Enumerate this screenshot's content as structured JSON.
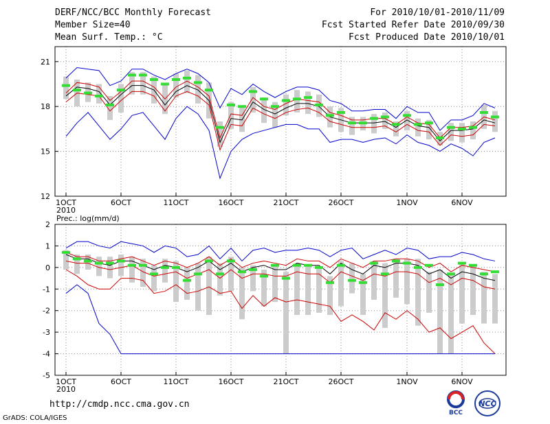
{
  "header": {
    "left": [
      "DERF/NCC/BCC Monthly Forecast",
      "Member Size=40",
      "Mean Surf. Temp.: °C"
    ],
    "right": [
      "For 2010/10/01-2010/11/09",
      "Fcst Started Refer Date 2010/09/30",
      "Fcst Produced Date 2010/10/01"
    ]
  },
  "footer": {
    "url": "http://cmdp.ncc.cma.gov.cn",
    "credit": "GrADS: COLA/IGES"
  },
  "logos": {
    "bcc": "BCC",
    "ncc": "NCC"
  },
  "colors": {
    "envelope": "#0000cc",
    "mean": "#000000",
    "spread": "#cc0000",
    "bar": "#cccccc",
    "marker": "#33dd33"
  },
  "chart_data": [
    {
      "type": "line",
      "title": "Mean Surf. Temp.: °C",
      "xlabel": "",
      "ylabel": "",
      "x_tick_labels": [
        "1OCT",
        "6OCT",
        "11OCT",
        "16OCT",
        "21OCT",
        "26OCT",
        "1NOV",
        "6NOV"
      ],
      "x_tick_days": [
        1,
        6,
        11,
        16,
        21,
        26,
        32,
        37
      ],
      "year_label": "2010",
      "ylim": [
        12,
        22
      ],
      "y_ticks": [
        12,
        15,
        18,
        21
      ],
      "x": [
        1,
        2,
        3,
        4,
        5,
        6,
        7,
        8,
        9,
        10,
        11,
        12,
        13,
        14,
        15,
        16,
        17,
        18,
        19,
        20,
        21,
        22,
        23,
        24,
        25,
        26,
        27,
        28,
        29,
        30,
        31,
        32,
        33,
        34,
        35,
        36,
        37,
        38,
        39,
        40
      ],
      "series": [
        {
          "name": "max",
          "values": [
            19.9,
            20.6,
            20.5,
            20.4,
            19.4,
            19.7,
            20.5,
            20.5,
            20.1,
            19.8,
            20.2,
            20.5,
            20.2,
            19.6,
            17.9,
            19.2,
            18.8,
            19.5,
            19.0,
            18.6,
            19.0,
            19.3,
            19.3,
            19.1,
            18.4,
            18.2,
            17.7,
            17.7,
            17.8,
            17.8,
            17.2,
            18.0,
            17.6,
            17.6,
            16.4,
            17.1,
            17.1,
            17.4,
            18.2,
            17.9
          ]
        },
        {
          "name": "upper",
          "values": [
            18.9,
            19.6,
            19.5,
            19.3,
            18.4,
            19.0,
            19.7,
            19.7,
            19.3,
            18.5,
            19.3,
            19.7,
            19.3,
            18.7,
            15.9,
            17.5,
            17.4,
            18.6,
            18.0,
            17.8,
            18.2,
            18.5,
            18.4,
            18.3,
            17.6,
            17.4,
            17.1,
            17.1,
            17.2,
            17.2,
            16.8,
            17.3,
            16.9,
            16.8,
            15.9,
            16.6,
            16.6,
            16.7,
            17.3,
            17.1
          ]
        },
        {
          "name": "mean",
          "values": [
            18.7,
            19.3,
            19.2,
            19.0,
            18.1,
            18.8,
            19.4,
            19.4,
            19.1,
            18.1,
            19.0,
            19.4,
            19.1,
            18.4,
            15.6,
            17.2,
            17.1,
            18.3,
            17.8,
            17.5,
            17.9,
            18.2,
            18.2,
            18.0,
            17.3,
            17.1,
            16.9,
            16.9,
            16.9,
            17.0,
            16.6,
            17.1,
            16.7,
            16.6,
            15.7,
            16.4,
            16.4,
            16.5,
            17.1,
            16.9
          ]
        },
        {
          "name": "lower",
          "values": [
            18.3,
            18.9,
            18.8,
            18.7,
            17.7,
            18.4,
            19.0,
            19.0,
            18.7,
            17.7,
            18.7,
            19.0,
            18.7,
            18.1,
            15.1,
            16.8,
            16.7,
            17.9,
            17.5,
            17.2,
            17.6,
            17.8,
            17.9,
            17.6,
            17.0,
            16.8,
            16.6,
            16.6,
            16.6,
            16.7,
            16.3,
            16.8,
            16.4,
            16.3,
            15.4,
            16.1,
            16.0,
            16.1,
            16.8,
            16.7
          ]
        },
        {
          "name": "min",
          "values": [
            16.0,
            16.9,
            17.6,
            16.7,
            15.8,
            16.5,
            17.4,
            17.6,
            16.7,
            15.8,
            17.2,
            18.0,
            17.5,
            16.4,
            13.2,
            15.0,
            15.8,
            16.2,
            16.4,
            16.6,
            16.8,
            16.8,
            16.5,
            16.5,
            15.6,
            15.8,
            15.8,
            15.6,
            15.8,
            15.9,
            15.5,
            16.1,
            15.6,
            15.4,
            15.0,
            15.5,
            15.2,
            14.7,
            15.6,
            15.9
          ]
        },
        {
          "name": "obs",
          "values": [
            19.4,
            19.1,
            18.9,
            18.7,
            18.1,
            19.1,
            20.1,
            20.1,
            19.8,
            19.5,
            19.8,
            19.9,
            19.6,
            19.1,
            16.6,
            18.1,
            18.0,
            19.0,
            18.5,
            18.0,
            18.4,
            18.5,
            18.6,
            18.1,
            17.4,
            17.6,
            16.9,
            16.9,
            17.2,
            17.3,
            16.8,
            17.4,
            16.8,
            16.9,
            15.9,
            16.6,
            16.5,
            16.6,
            17.6,
            17.3
          ]
        }
      ],
      "bars": [
        [
          18.5,
          20.0
        ],
        [
          18.0,
          19.8
        ],
        [
          18.3,
          19.6
        ],
        [
          18.2,
          19.5
        ],
        [
          17.1,
          18.7
        ],
        [
          17.6,
          19.5
        ],
        [
          18.8,
          20.3
        ],
        [
          18.8,
          20.3
        ],
        [
          18.2,
          20.0
        ],
        [
          17.5,
          19.5
        ],
        [
          18.6,
          20.2
        ],
        [
          18.9,
          20.4
        ],
        [
          18.2,
          20.1
        ],
        [
          17.2,
          19.6
        ],
        [
          15.3,
          17.0
        ],
        [
          16.5,
          18.3
        ],
        [
          16.3,
          18.0
        ],
        [
          17.6,
          19.3
        ],
        [
          16.9,
          18.6
        ],
        [
          16.6,
          18.3
        ],
        [
          17.4,
          18.8
        ],
        [
          17.6,
          19.1
        ],
        [
          17.5,
          19.0
        ],
        [
          17.3,
          18.8
        ],
        [
          16.6,
          18.0
        ],
        [
          16.3,
          17.9
        ],
        [
          16.1,
          17.3
        ],
        [
          16.4,
          17.3
        ],
        [
          16.2,
          17.5
        ],
        [
          16.5,
          17.6
        ],
        [
          16.0,
          17.0
        ],
        [
          16.4,
          17.7
        ],
        [
          16.0,
          17.2
        ],
        [
          15.8,
          17.1
        ],
        [
          15.4,
          16.3
        ],
        [
          15.7,
          16.9
        ],
        [
          15.6,
          16.9
        ],
        [
          15.8,
          17.0
        ],
        [
          16.5,
          18.1
        ],
        [
          16.3,
          17.7
        ]
      ]
    },
    {
      "type": "line",
      "title": "Prec.: log(mm/d)",
      "xlabel": "",
      "ylabel": "",
      "x_tick_labels": [
        "1OCT",
        "6OCT",
        "11OCT",
        "16OCT",
        "21OCT",
        "26OCT",
        "1NOV",
        "6NOV"
      ],
      "x_tick_days": [
        1,
        6,
        11,
        16,
        21,
        26,
        32,
        37
      ],
      "year_label": "2010",
      "ylim": [
        -5,
        2
      ],
      "y_ticks": [
        -5,
        -4,
        -3,
        -2,
        -1,
        0,
        1,
        2
      ],
      "x": [
        1,
        2,
        3,
        4,
        5,
        6,
        7,
        8,
        9,
        10,
        11,
        12,
        13,
        14,
        15,
        16,
        17,
        18,
        19,
        20,
        21,
        22,
        23,
        24,
        25,
        26,
        27,
        28,
        29,
        30,
        31,
        32,
        33,
        34,
        35,
        36,
        37,
        38,
        39,
        40
      ],
      "series": [
        {
          "name": "max",
          "values": [
            0.9,
            1.2,
            1.2,
            1.0,
            0.9,
            1.2,
            1.1,
            1.0,
            0.7,
            1.0,
            0.9,
            0.5,
            0.6,
            1.0,
            0.4,
            0.9,
            0.3,
            0.8,
            0.9,
            0.7,
            0.8,
            0.8,
            0.9,
            0.8,
            0.5,
            0.8,
            0.9,
            0.4,
            0.6,
            0.8,
            0.6,
            0.9,
            0.8,
            0.4,
            0.5,
            0.5,
            0.7,
            0.6,
            0.4,
            0.3
          ]
        },
        {
          "name": "upper",
          "values": [
            0.7,
            0.5,
            0.5,
            0.3,
            0.3,
            0.4,
            0.5,
            0.3,
            0.1,
            0.3,
            0.2,
            0.0,
            0.2,
            0.5,
            0.1,
            0.4,
            0.0,
            0.2,
            0.3,
            0.2,
            0.1,
            0.4,
            0.3,
            0.3,
            0.0,
            0.4,
            0.2,
            0.0,
            0.3,
            0.3,
            0.4,
            0.4,
            0.3,
            0.0,
            0.2,
            -0.2,
            0.1,
            0.0,
            -0.1,
            -0.2
          ]
        },
        {
          "name": "mean",
          "values": [
            0.6,
            0.4,
            0.4,
            0.2,
            0.1,
            0.3,
            0.3,
            0.1,
            -0.1,
            0.1,
            0.0,
            -0.2,
            0.0,
            0.3,
            -0.1,
            0.2,
            -0.2,
            0.0,
            0.1,
            -0.1,
            -0.1,
            0.2,
            0.1,
            0.1,
            -0.3,
            0.2,
            -0.1,
            -0.3,
            0.1,
            0.0,
            0.2,
            0.2,
            0.1,
            -0.3,
            -0.1,
            -0.5,
            -0.2,
            -0.3,
            -0.5,
            -0.6
          ]
        },
        {
          "name": "lower",
          "values": [
            0.3,
            0.2,
            0.2,
            0.0,
            -0.1,
            0.0,
            0.1,
            -0.2,
            -0.4,
            -0.3,
            -0.2,
            -0.5,
            -0.3,
            -0.1,
            -0.5,
            -0.1,
            -0.5,
            -0.3,
            -0.3,
            -0.4,
            -0.4,
            -0.2,
            -0.3,
            -0.3,
            -0.7,
            -0.2,
            -0.4,
            -0.6,
            -0.3,
            -0.4,
            -0.2,
            -0.2,
            -0.3,
            -0.7,
            -0.5,
            -0.8,
            -0.5,
            -0.6,
            -0.9,
            -1.0
          ]
        },
        {
          "name": "min",
          "values": [
            -1.2,
            -0.8,
            -1.2,
            -2.6,
            -3.1,
            -4.0,
            -4.0,
            -4.0,
            -4.0,
            -4.0,
            -4.0,
            -4.0,
            -4.0,
            -4.0,
            -4.0,
            -4.0,
            -4.0,
            -4.0,
            -4.0,
            -4.0,
            -4.0,
            -4.0,
            -4.0,
            -4.0,
            -4.0,
            -4.0,
            -4.0,
            -4.0,
            -4.0,
            -4.0,
            -4.0,
            -4.0,
            -4.0,
            -4.0,
            -4.0,
            -4.0,
            -4.0,
            -4.0,
            -4.0,
            -4.0
          ]
        },
        {
          "name": "red_lower",
          "values": [
            -0.1,
            -0.4,
            -0.8,
            -1.0,
            -1.0,
            -0.5,
            -0.5,
            -0.6,
            -1.2,
            -1.1,
            -0.8,
            -1.2,
            -1.1,
            -0.9,
            -1.2,
            -1.1,
            -1.9,
            -1.3,
            -1.8,
            -1.4,
            -1.6,
            -1.5,
            -1.6,
            -1.7,
            -1.8,
            -2.5,
            -2.2,
            -2.5,
            -2.9,
            -2.1,
            -2.4,
            -2.0,
            -2.4,
            -3.0,
            -2.8,
            -3.3,
            -3.0,
            -2.7,
            -3.5,
            -4.0
          ]
        },
        {
          "name": "obs",
          "values": [
            0.7,
            0.4,
            0.3,
            0.2,
            0.2,
            0.3,
            0.1,
            0.1,
            -0.3,
            0.0,
            0.0,
            -0.6,
            -0.3,
            0.3,
            -0.3,
            0.3,
            -0.2,
            -0.1,
            -0.4,
            0.1,
            -0.5,
            0.1,
            0.1,
            0.0,
            -0.7,
            0.1,
            -0.6,
            -0.7,
            0.2,
            -0.3,
            0.3,
            0.2,
            0.0,
            0.1,
            -0.8,
            -0.3,
            0.2,
            0.1,
            -0.3,
            -0.2
          ]
        }
      ],
      "bars": [
        [
          -0.1,
          0.8
        ],
        [
          -0.3,
          0.6
        ],
        [
          -0.1,
          0.6
        ],
        [
          -0.4,
          0.5
        ],
        [
          -0.5,
          0.5
        ],
        [
          -0.4,
          0.6
        ],
        [
          -0.7,
          0.5
        ],
        [
          -0.9,
          0.4
        ],
        [
          -1.1,
          0.1
        ],
        [
          -0.7,
          0.4
        ],
        [
          -1.6,
          0.3
        ],
        [
          -1.5,
          0.0
        ],
        [
          -2.0,
          0.2
        ],
        [
          -2.2,
          0.5
        ],
        [
          -1.3,
          0.2
        ],
        [
          -1.1,
          0.5
        ],
        [
          -2.4,
          0.0
        ],
        [
          -1.1,
          0.1
        ],
        [
          -1.8,
          -0.1
        ],
        [
          -1.6,
          0.1
        ],
        [
          -4.0,
          -0.2
        ],
        [
          -2.2,
          0.2
        ],
        [
          -2.2,
          0.1
        ],
        [
          -2.1,
          0.0
        ],
        [
          -2.2,
          -0.4
        ],
        [
          -1.8,
          0.3
        ],
        [
          -1.2,
          0.2
        ],
        [
          -2.2,
          -0.3
        ],
        [
          -1.5,
          0.3
        ],
        [
          -2.8,
          0.2
        ],
        [
          -1.4,
          0.4
        ],
        [
          -1.7,
          0.4
        ],
        [
          -2.7,
          0.4
        ],
        [
          -2.1,
          -0.2
        ],
        [
          -4.0,
          -0.1
        ],
        [
          -4.0,
          -0.3
        ],
        [
          -2.6,
          0.2
        ],
        [
          -2.2,
          0.1
        ],
        [
          -2.6,
          -0.2
        ],
        [
          -2.6,
          -0.3
        ]
      ]
    }
  ]
}
